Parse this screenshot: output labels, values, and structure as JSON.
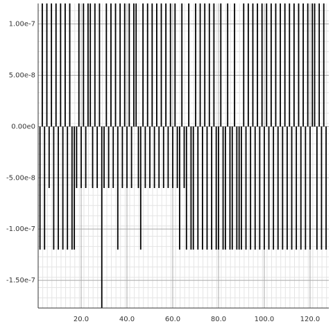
{
  "chart_data": {
    "type": "stem",
    "color": "#000000",
    "grid": true,
    "xlim": [
      1.2,
      128.2
    ],
    "ylim": [
      -1.77e-07,
      1.2e-07
    ],
    "xticks": [
      {
        "value": 20,
        "label": "20.0"
      },
      {
        "value": 40,
        "label": "40.0"
      },
      {
        "value": 60,
        "label": "60.0"
      },
      {
        "value": 80,
        "label": "80.0"
      },
      {
        "value": 100,
        "label": "100.0"
      },
      {
        "value": 120,
        "label": "120.0"
      }
    ],
    "yticks": [
      {
        "value": 1e-07,
        "label": "1.00e-7"
      },
      {
        "value": 5e-08,
        "label": "5.00e-8"
      },
      {
        "value": 0,
        "label": "0.00e0"
      },
      {
        "value": -5e-08,
        "label": "-5.00e-8"
      },
      {
        "value": -1e-07,
        "label": "-1.00e-7"
      },
      {
        "value": -1.5e-07,
        "label": "-1.50e-7"
      }
    ],
    "x": [
      2,
      3,
      4,
      5,
      6,
      7,
      8,
      9,
      10,
      11,
      12,
      13,
      14,
      15,
      16,
      17,
      18,
      19,
      20,
      21,
      22,
      23,
      24,
      25,
      26,
      27,
      28,
      29,
      30,
      31,
      32,
      33,
      34,
      35,
      36,
      37,
      38,
      39,
      40,
      41,
      42,
      43,
      44,
      45,
      46,
      47,
      48,
      49,
      50,
      51,
      52,
      53,
      54,
      55,
      56,
      57,
      58,
      59,
      60,
      61,
      62,
      63,
      64,
      65,
      66,
      67,
      68,
      69,
      70,
      71,
      72,
      73,
      74,
      75,
      76,
      77,
      78,
      79,
      80,
      81,
      82,
      83,
      84,
      85,
      86,
      87,
      88,
      89,
      90,
      91,
      92,
      93,
      94,
      95,
      96,
      97,
      98,
      99,
      100,
      101,
      102,
      103,
      104,
      105,
      106,
      107,
      108,
      109,
      110,
      111,
      112,
      113,
      114,
      115,
      116,
      117,
      118,
      119,
      120,
      121,
      122,
      123,
      124,
      125,
      126,
      127
    ],
    "values": [
      -1.2e-07,
      1.2e-07,
      -1.2e-07,
      1.2e-07,
      -6e-08,
      1.2e-07,
      -1.2e-07,
      1.2e-07,
      -1.2e-07,
      1.2e-07,
      -1.2e-07,
      1.2e-07,
      -1.2e-07,
      1.2e-07,
      -1.2e-07,
      -1.2e-07,
      -6e-08,
      1.2e-07,
      -6e-08,
      1.2e-07,
      -6e-08,
      1.2e-07,
      1.2e-07,
      -6e-08,
      1.2e-07,
      -6e-08,
      1.2e-07,
      -1.77e-07,
      -6e-08,
      1.2e-07,
      -6e-08,
      1.2e-07,
      -6e-08,
      1.2e-07,
      -1.2e-07,
      1.2e-07,
      -6e-08,
      1.2e-07,
      -6e-08,
      1.2e-07,
      -6e-08,
      1.2e-07,
      1.2e-07,
      -6e-08,
      -1.2e-07,
      1.2e-07,
      -6e-08,
      1.2e-07,
      -6e-08,
      1.2e-07,
      -6e-08,
      1.2e-07,
      -6e-08,
      1.2e-07,
      -6e-08,
      1.2e-07,
      -6e-08,
      1.2e-07,
      -6e-08,
      1.2e-07,
      -6e-08,
      -1.2e-07,
      1.2e-07,
      -6e-08,
      -1.2e-07,
      1.2e-07,
      -1.2e-07,
      -1.2e-07,
      1.2e-07,
      -1.2e-07,
      1.2e-07,
      -1.2e-07,
      1.2e-07,
      -1.2e-07,
      1.2e-07,
      -1.2e-07,
      1.2e-07,
      -1.2e-07,
      -1.2e-07,
      1.2e-07,
      -1.2e-07,
      -1.2e-07,
      1.2e-07,
      -1.2e-07,
      -1.2e-07,
      1.2e-07,
      -1.2e-07,
      -1.2e-07,
      -1.2e-07,
      1.2e-07,
      -1.2e-07,
      1.2e-07,
      -1.2e-07,
      1.2e-07,
      -1.2e-07,
      1.2e-07,
      -1.2e-07,
      1.2e-07,
      -1.2e-07,
      1.2e-07,
      -1.2e-07,
      1.2e-07,
      -1.2e-07,
      1.2e-07,
      -1.2e-07,
      1.2e-07,
      -1.2e-07,
      1.2e-07,
      -1.2e-07,
      1.2e-07,
      -1.2e-07,
      1.2e-07,
      -1.2e-07,
      1.2e-07,
      -1.2e-07,
      1.2e-07,
      -1.2e-07,
      1.2e-07,
      -1.2e-07,
      1.2e-07,
      1.2e-07,
      -1.2e-07,
      1.2e-07,
      -1.2e-07,
      1.2e-07,
      -1.2e-07
    ]
  }
}
